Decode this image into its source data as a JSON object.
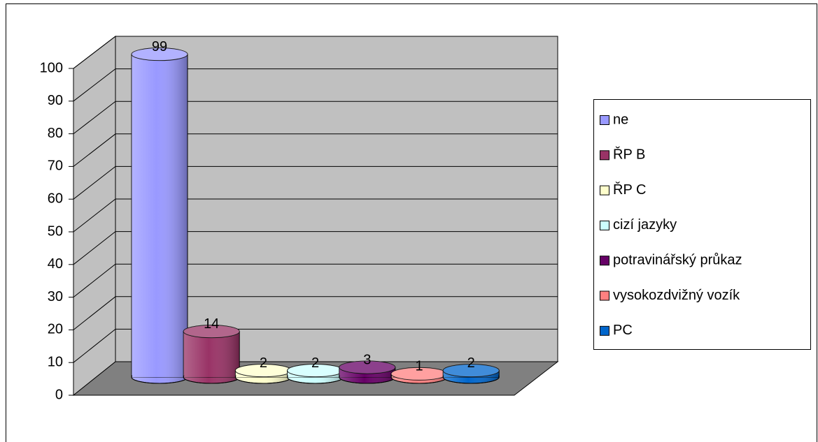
{
  "chart_data": {
    "type": "bar3d",
    "series": [
      {
        "name": "ne",
        "color": "#9999ff",
        "values": [
          99
        ]
      },
      {
        "name": "ŘP B",
        "color": "#993366",
        "values": [
          14
        ]
      },
      {
        "name": "ŘP C",
        "color": "#ffffcc",
        "values": [
          2
        ]
      },
      {
        "name": "cizí jazyky",
        "color": "#ccffff",
        "values": [
          2
        ]
      },
      {
        "name": "potravinářský průkaz",
        "color": "#660066",
        "values": [
          3
        ]
      },
      {
        "name": "vysokozdvižný vozík",
        "color": "#ff8080",
        "values": [
          1
        ]
      },
      {
        "name": "PC",
        "color": "#0066cc",
        "values": [
          2
        ]
      }
    ],
    "ylim": [
      0,
      100
    ],
    "yticks": [
      0,
      10,
      20,
      30,
      40,
      50,
      60,
      70,
      80,
      90,
      100
    ],
    "grid": true,
    "legend": "right"
  }
}
